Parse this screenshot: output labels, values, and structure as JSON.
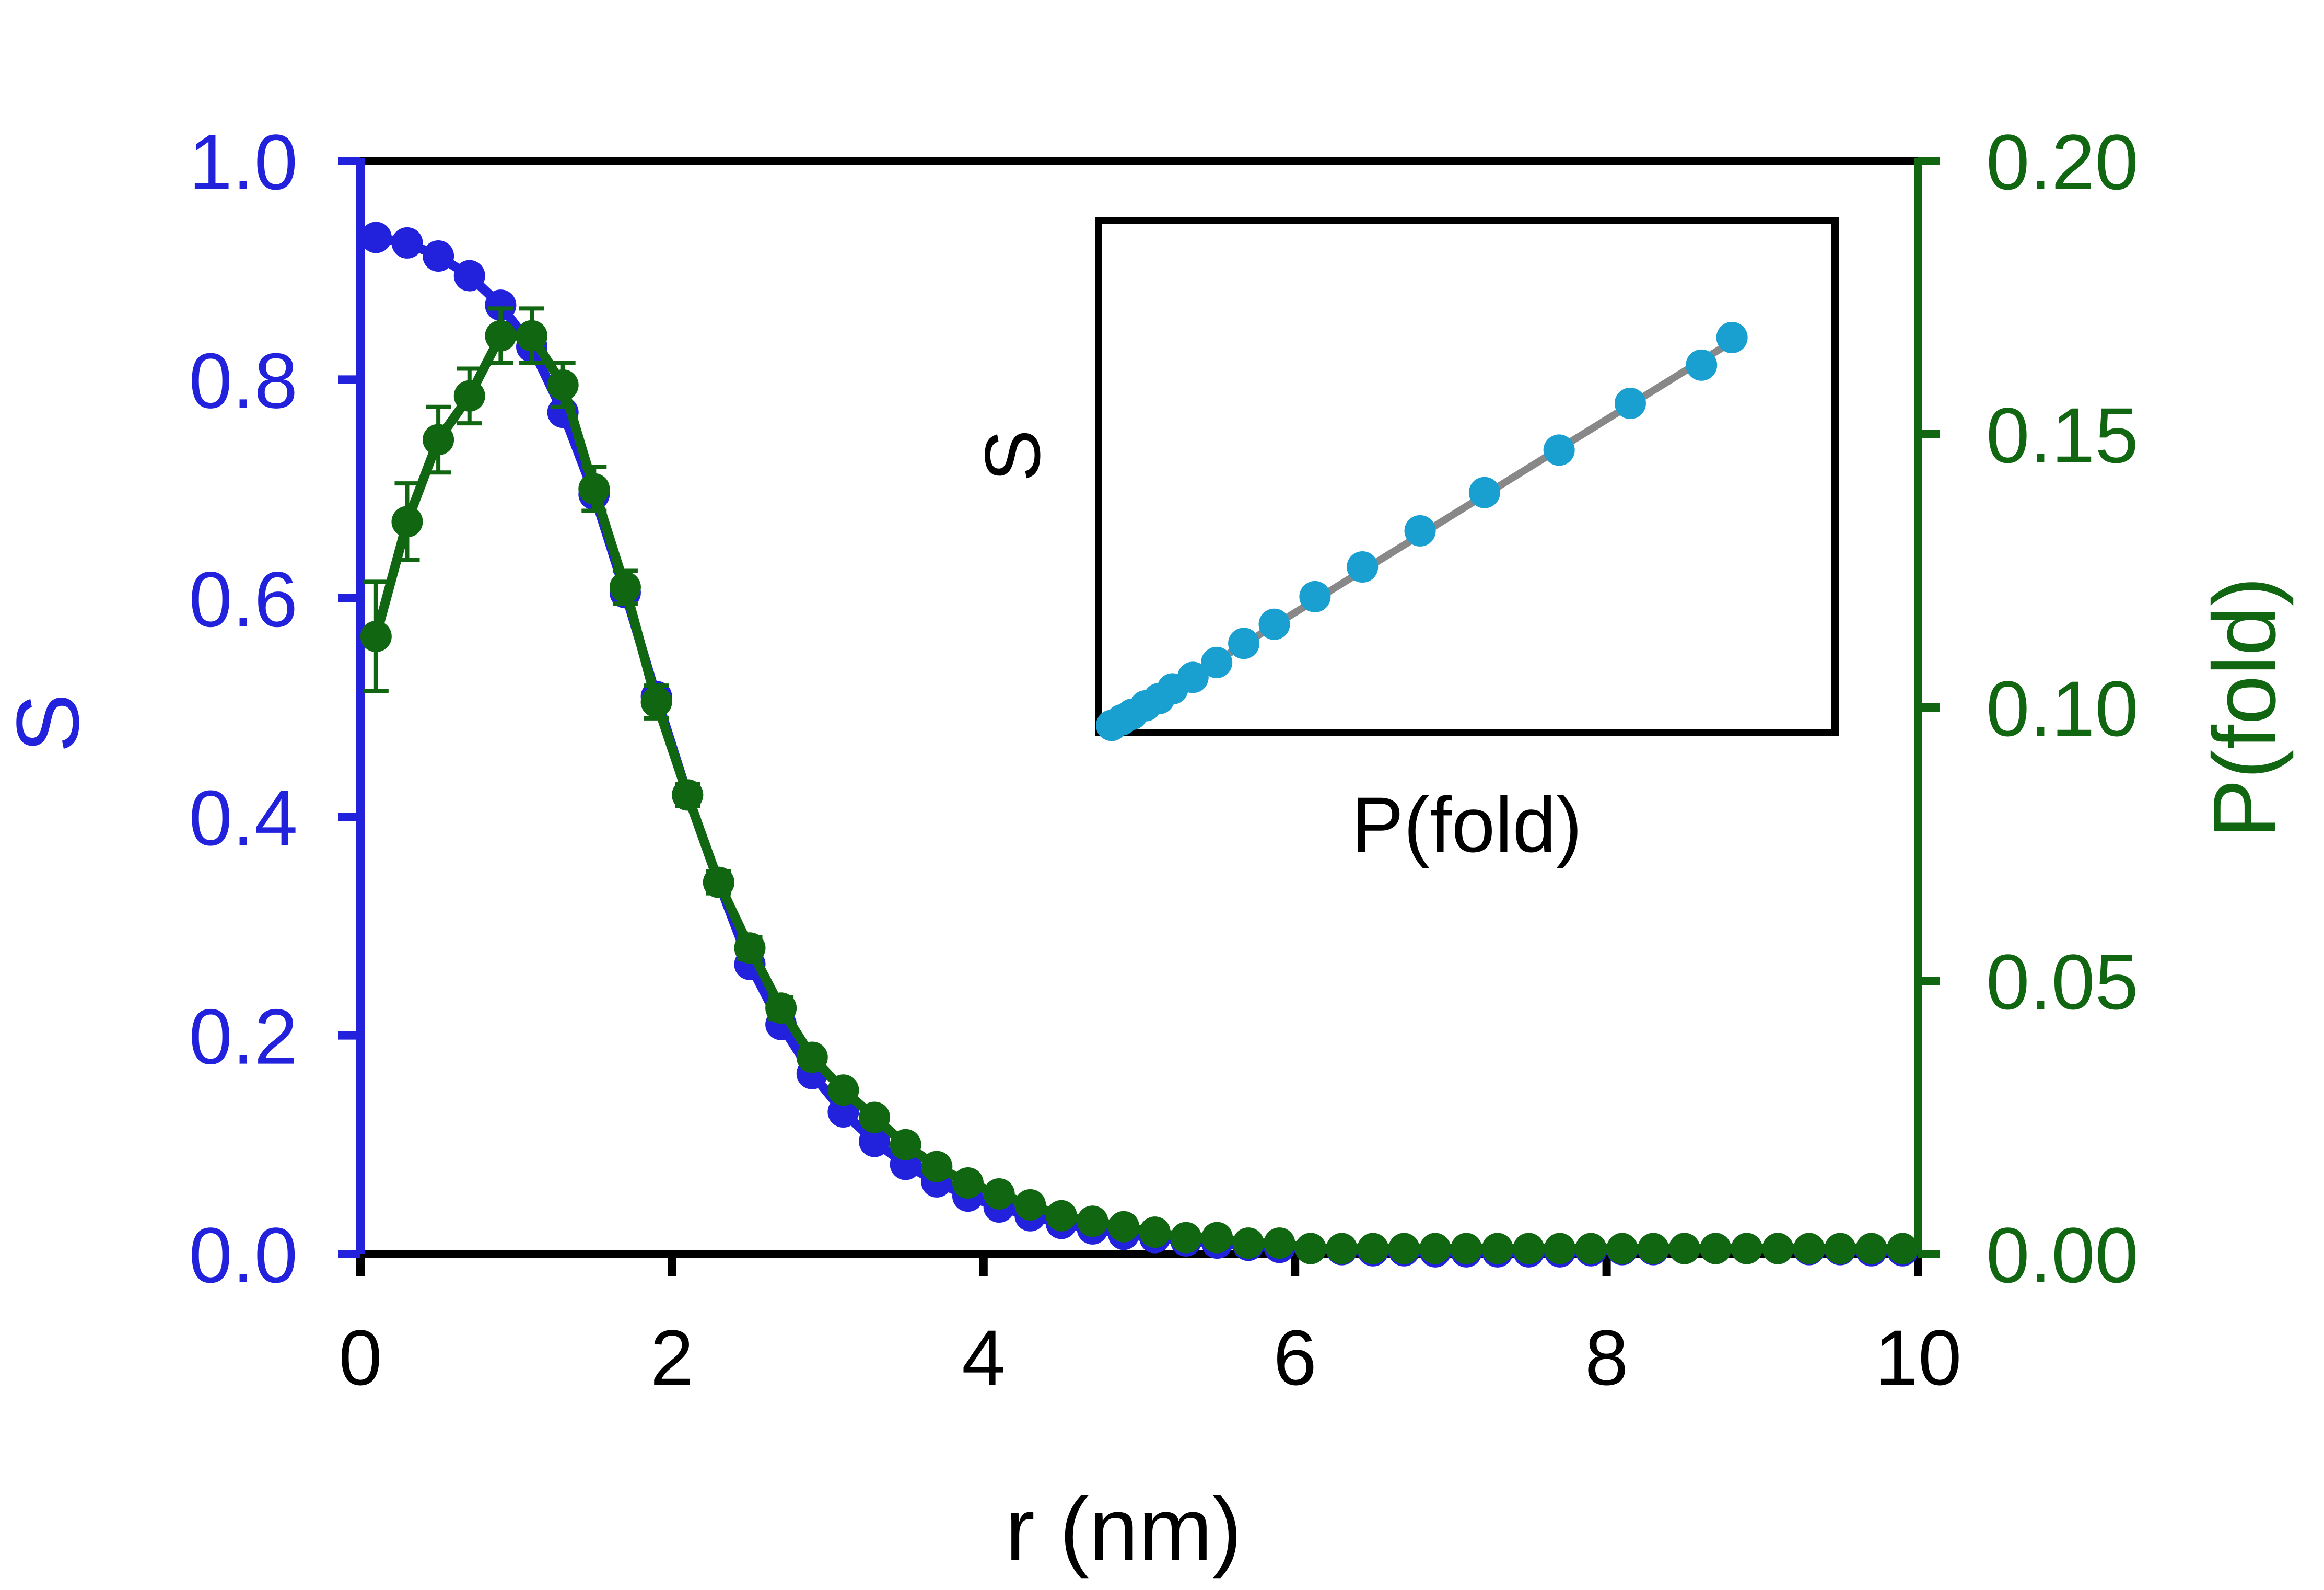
{
  "chart_data": [
    {
      "name": "main",
      "type": "line",
      "xlabel": "r (nm)",
      "ylabel_left": "S",
      "ylabel_right": "P(fold)",
      "xlim": [
        0,
        10
      ],
      "ylim_left": [
        0,
        1
      ],
      "ylim_right": [
        0,
        0.2
      ],
      "x_ticks": [
        0,
        2,
        4,
        6,
        8,
        10
      ],
      "x_tick_labels": [
        "0",
        "2",
        "4",
        "6",
        "8",
        "10"
      ],
      "y_left_ticks": [
        0.0,
        0.2,
        0.4,
        0.6,
        0.8,
        1.0
      ],
      "y_left_tick_labels": [
        "0.0",
        "0.2",
        "0.4",
        "0.6",
        "0.8",
        "1.0"
      ],
      "y_right_ticks": [
        0.0,
        0.05,
        0.1,
        0.15,
        0.2
      ],
      "y_right_tick_labels": [
        "0.00",
        "0.05",
        "0.10",
        "0.15",
        "0.20"
      ],
      "colors": {
        "left_axis": "#2222dd",
        "right_axis": "#116611",
        "axis": "#000000"
      },
      "series": [
        {
          "name": "S",
          "axis": "left",
          "color": "#2222dd",
          "x": [
            0.1,
            0.3,
            0.5,
            0.7,
            0.9,
            1.1,
            1.3,
            1.5,
            1.7,
            1.9,
            2.1,
            2.3,
            2.5,
            2.7,
            2.9,
            3.1,
            3.3,
            3.5,
            3.7,
            3.9,
            4.1,
            4.3,
            4.5,
            4.7,
            4.9,
            5.1,
            5.3,
            5.5,
            5.7,
            5.9,
            6.1,
            6.3,
            6.5,
            6.7,
            6.9,
            7.1,
            7.3,
            7.5,
            7.7,
            7.9,
            8.1,
            8.3,
            8.5,
            8.7,
            8.9,
            9.1,
            9.3,
            9.5,
            9.7,
            9.9
          ],
          "values": [
            0.93,
            0.925,
            0.913,
            0.895,
            0.868,
            0.83,
            0.77,
            0.695,
            0.605,
            0.51,
            0.42,
            0.34,
            0.265,
            0.21,
            0.165,
            0.13,
            0.103,
            0.082,
            0.066,
            0.053,
            0.043,
            0.035,
            0.028,
            0.023,
            0.018,
            0.015,
            0.012,
            0.01,
            0.008,
            0.006,
            0.005,
            0.004,
            0.003,
            0.003,
            0.002,
            0.002,
            0.002,
            0.002,
            0.002,
            0.003,
            0.004,
            0.004,
            0.005,
            0.005,
            0.005,
            0.005,
            0.004,
            0.004,
            0.003,
            0.003
          ]
        },
        {
          "name": "P(fold)",
          "axis": "right",
          "color": "#116611",
          "x": [
            0.1,
            0.3,
            0.5,
            0.7,
            0.9,
            1.1,
            1.3,
            1.5,
            1.7,
            1.9,
            2.1,
            2.3,
            2.5,
            2.7,
            2.9,
            3.1,
            3.3,
            3.5,
            3.7,
            3.9,
            4.1,
            4.3,
            4.5,
            4.7,
            4.9,
            5.1,
            5.3,
            5.5,
            5.7,
            5.9,
            6.1,
            6.3,
            6.5,
            6.7,
            6.9,
            7.1,
            7.3,
            7.5,
            7.7,
            7.9,
            8.1,
            8.3,
            8.5,
            8.7,
            8.9,
            9.1,
            9.3,
            9.5,
            9.7,
            9.9
          ],
          "values": [
            0.113,
            0.134,
            0.149,
            0.157,
            0.168,
            0.168,
            0.159,
            0.14,
            0.122,
            0.101,
            0.084,
            0.068,
            0.056,
            0.045,
            0.036,
            0.03,
            0.025,
            0.02,
            0.016,
            0.013,
            0.011,
            0.009,
            0.007,
            0.006,
            0.005,
            0.004,
            0.003,
            0.003,
            0.002,
            0.002,
            0.001,
            0.001,
            0.001,
            0.001,
            0.001,
            0.001,
            0.001,
            0.001,
            0.001,
            0.001,
            0.001,
            0.001,
            0.001,
            0.001,
            0.001,
            0.001,
            0.001,
            0.001,
            0.001,
            0.001
          ],
          "error": [
            0.01,
            0.007,
            0.006,
            0.005,
            0.005,
            0.005,
            0.004,
            0.004,
            0.003,
            0.003,
            0.002,
            0.002,
            0.002,
            0.002,
            0.001,
            0.001,
            0.001,
            0.001,
            0.001,
            0.001,
            0.001,
            0.0008,
            0.0006,
            0.0005,
            0.0004,
            0.0003,
            0.0003,
            0.0002,
            0.0002,
            0.0002,
            0,
            0,
            0,
            0,
            0,
            0,
            0,
            0,
            0,
            0,
            0,
            0,
            0,
            0,
            0,
            0,
            0,
            0,
            0,
            0
          ]
        }
      ]
    },
    {
      "name": "inset",
      "type": "scatter",
      "xlabel": "P(fold)",
      "ylabel": "S",
      "xlim": [
        0,
        1
      ],
      "ylim": [
        0,
        1
      ],
      "point_color": "#1a9fd1",
      "fit_color": "#888888",
      "fit_line": [
        [
          0.0,
          0.0
        ],
        [
          0.93,
          0.92
        ]
      ],
      "points": [
        [
          0.01,
          0.012
        ],
        [
          0.025,
          0.025
        ],
        [
          0.04,
          0.038
        ],
        [
          0.06,
          0.058
        ],
        [
          0.08,
          0.075
        ],
        [
          0.1,
          0.098
        ],
        [
          0.13,
          0.125
        ],
        [
          0.165,
          0.16
        ],
        [
          0.205,
          0.205
        ],
        [
          0.25,
          0.25
        ],
        [
          0.31,
          0.315
        ],
        [
          0.38,
          0.385
        ],
        [
          0.465,
          0.47
        ],
        [
          0.56,
          0.56
        ],
        [
          0.67,
          0.66
        ],
        [
          0.775,
          0.77
        ],
        [
          0.88,
          0.86
        ],
        [
          0.925,
          0.925
        ]
      ]
    }
  ]
}
